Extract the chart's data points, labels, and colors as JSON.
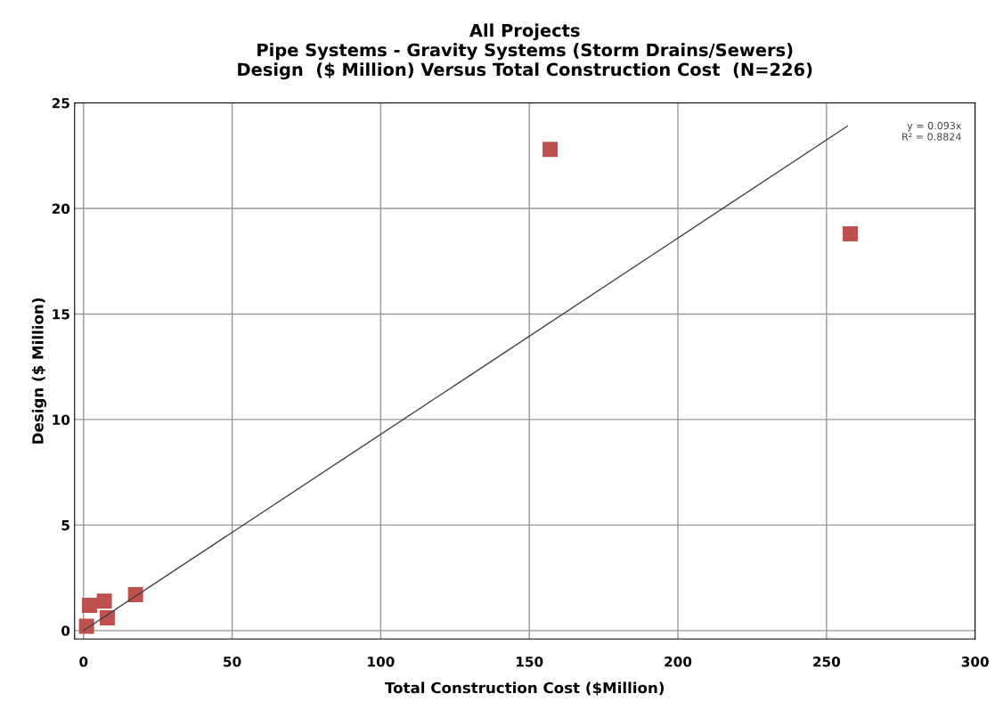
{
  "chart_data": {
    "type": "scatter",
    "title": "All Projects\nPipe Systems - Gravity Systems (Storm Drains/Sewers)\nDesign  ($ Million) Versus Total Construction Cost  (N=226)",
    "xlabel": "Total Construction Cost ($Million)",
    "ylabel": "Design ($ Million)",
    "series": [
      {
        "color": "#c0504d",
        "marker": "square",
        "x": [
          157,
          258,
          17.5,
          2,
          7,
          8,
          1
        ],
        "values": [
          22.8,
          18.8,
          1.7,
          1.2,
          1.4,
          0.6,
          0.2
        ]
      },
      {
        "type": "line",
        "color": "#404040",
        "marker": "none",
        "x": [
          0,
          257
        ],
        "values": [
          0,
          23.9
        ]
      }
    ],
    "annotations": [
      "y = 0.093x\nR² = 0.8824"
    ],
    "xlim": [
      -3,
      300
    ],
    "ylim": [
      -0.4,
      25
    ],
    "xticks": [
      0,
      50,
      100,
      150,
      200,
      250,
      300
    ],
    "yticks": [
      0,
      5,
      10,
      15,
      20,
      25
    ],
    "grid": true,
    "legend": false
  }
}
